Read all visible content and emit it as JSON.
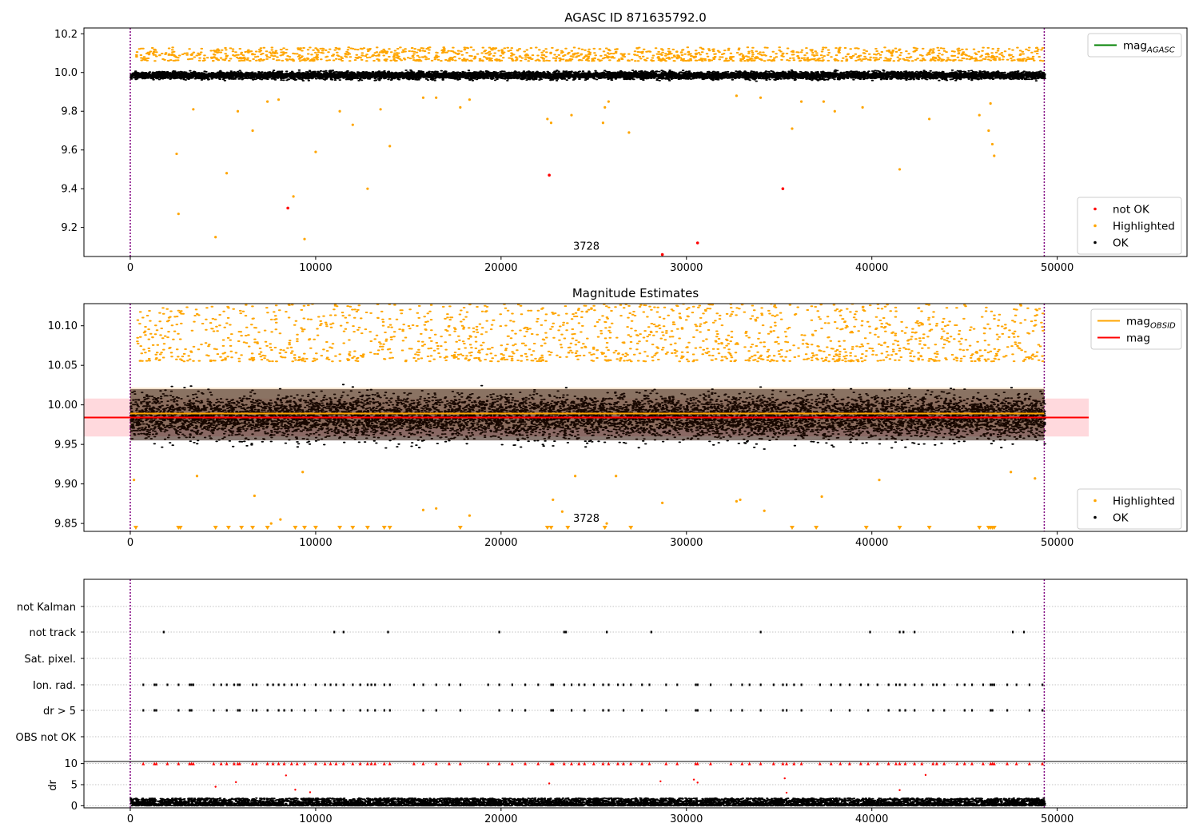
{
  "colors": {
    "ok": "#000000",
    "highlighted": "#ffa500",
    "not_ok": "#ff0000",
    "agasc_line": "#008000",
    "obsid_line": "#ffa500",
    "mag_line": "#ff0000",
    "band_red": "#ffc0c6",
    "band_orange": "#ffe4c4",
    "vline": "#800080",
    "grid": "#b0b0b0"
  },
  "chart_data": [
    {
      "type": "scatter",
      "title": "AGASC ID 871635792.0",
      "xlim": [
        -2500,
        57000
      ],
      "ylim": [
        9.05,
        10.23
      ],
      "x_ticks": [
        0,
        10000,
        20000,
        30000,
        40000,
        50000
      ],
      "x_tick_labels": [
        "0",
        "10000",
        "20000",
        "30000",
        "40000",
        "50000"
      ],
      "y_ticks": [
        9.2,
        9.4,
        9.6,
        9.8,
        10.0,
        10.2
      ],
      "y_tick_labels": [
        "9.2",
        "9.4",
        "9.6",
        "9.8",
        "10.0",
        "10.2"
      ],
      "vlines": [
        0,
        49300
      ],
      "obsid_label": {
        "text": "3728",
        "x": 24600,
        "y": 9.085
      },
      "ok_band": {
        "x_range": [
          0,
          49300
        ],
        "y_center": 9.985,
        "y_spread": 0.035
      },
      "highlighted_upper": {
        "y_range": [
          10.06,
          10.13
        ]
      },
      "highlighted_points": [
        [
          2500,
          9.58
        ],
        [
          2600,
          9.27
        ],
        [
          3400,
          9.81
        ],
        [
          4600,
          9.15
        ],
        [
          5200,
          9.48
        ],
        [
          5800,
          9.8
        ],
        [
          6600,
          9.7
        ],
        [
          7400,
          9.85
        ],
        [
          8000,
          9.86
        ],
        [
          8800,
          9.36
        ],
        [
          9400,
          9.14
        ],
        [
          10000,
          9.59
        ],
        [
          11300,
          9.8
        ],
        [
          12000,
          9.73
        ],
        [
          12800,
          9.4
        ],
        [
          13500,
          9.81
        ],
        [
          14000,
          9.62
        ],
        [
          15800,
          9.87
        ],
        [
          16500,
          9.87
        ],
        [
          17800,
          9.82
        ],
        [
          18300,
          9.86
        ],
        [
          22500,
          9.76
        ],
        [
          22700,
          9.74
        ],
        [
          23800,
          9.78
        ],
        [
          25500,
          9.74
        ],
        [
          25600,
          9.82
        ],
        [
          25800,
          9.85
        ],
        [
          26900,
          9.69
        ],
        [
          32700,
          9.88
        ],
        [
          34000,
          9.87
        ],
        [
          35700,
          9.71
        ],
        [
          36200,
          9.85
        ],
        [
          37400,
          9.85
        ],
        [
          38000,
          9.8
        ],
        [
          39500,
          9.82
        ],
        [
          41500,
          9.5
        ],
        [
          43100,
          9.76
        ],
        [
          45800,
          9.78
        ],
        [
          46300,
          9.7
        ],
        [
          46400,
          9.84
        ],
        [
          46500,
          9.63
        ],
        [
          46600,
          9.57
        ]
      ],
      "not_ok_points": [
        [
          8500,
          9.3
        ],
        [
          22600,
          9.47
        ],
        [
          28700,
          9.06
        ],
        [
          30600,
          9.12
        ],
        [
          35200,
          9.4
        ]
      ],
      "legends": [
        {
          "position": "top-right",
          "entries": [
            {
              "label": "mag",
              "subscript": "AGASC",
              "kind": "line",
              "color": "#008000"
            }
          ]
        },
        {
          "position": "lower-right",
          "entries": [
            {
              "label": "not OK",
              "kind": "dot",
              "color": "#ff0000"
            },
            {
              "label": "Highlighted",
              "kind": "dot",
              "color": "#ffa500"
            },
            {
              "label": "OK",
              "kind": "dot",
              "color": "#000000"
            }
          ]
        }
      ]
    },
    {
      "type": "scatter",
      "title": "Magnitude Estimates",
      "xlim": [
        -2500,
        57000
      ],
      "ylim": [
        9.84,
        10.128
      ],
      "x_ticks": [
        0,
        10000,
        20000,
        30000,
        40000,
        50000
      ],
      "x_tick_labels": [
        "0",
        "10000",
        "20000",
        "30000",
        "40000",
        "50000"
      ],
      "y_ticks": [
        9.85,
        9.9,
        9.95,
        10.0,
        10.05,
        10.1
      ],
      "y_tick_labels": [
        "9.85",
        "9.90",
        "9.95",
        "10.00",
        "10.05",
        "10.10"
      ],
      "vlines": [
        0,
        49300
      ],
      "obsid_label": {
        "text": "3728",
        "x": 24600,
        "y": 9.852
      },
      "mag": 9.984,
      "mag_band": [
        9.96,
        10.008
      ],
      "mag_line_x": [
        -2500,
        51700
      ],
      "mag_obsid": 9.989,
      "mag_obsid_band": [
        9.97,
        10.022
      ],
      "mag_obsid_x": [
        0,
        49300
      ],
      "ok_band": {
        "x_range": [
          0,
          49300
        ],
        "y_center": 9.985,
        "y_spread": 0.05
      },
      "highlighted_upper": {
        "y_range": [
          10.055,
          10.128
        ]
      },
      "highlighted_lower_x": [
        300,
        2600,
        2700,
        4600,
        5300,
        6000,
        6600,
        7400,
        8900,
        9400,
        10000,
        11300,
        12000,
        12800,
        13700,
        14000,
        17800,
        22500,
        22700,
        23600,
        25600,
        27000,
        35700,
        37000,
        39700,
        41500,
        43100,
        45800,
        46300,
        46400,
        46500,
        46600
      ],
      "highlighted_points": [
        [
          200,
          9.905
        ],
        [
          3600,
          9.91
        ],
        [
          6700,
          9.885
        ],
        [
          7600,
          9.85
        ],
        [
          8100,
          9.855
        ],
        [
          9300,
          9.915
        ],
        [
          15800,
          9.867
        ],
        [
          16500,
          9.869
        ],
        [
          18300,
          9.86
        ],
        [
          22800,
          9.88
        ],
        [
          23300,
          9.865
        ],
        [
          24000,
          9.91
        ],
        [
          25700,
          9.85
        ],
        [
          26200,
          9.91
        ],
        [
          28700,
          9.876
        ],
        [
          32700,
          9.878
        ],
        [
          32900,
          9.88
        ],
        [
          34200,
          9.866
        ],
        [
          37300,
          9.884
        ],
        [
          40400,
          9.905
        ],
        [
          47500,
          9.915
        ],
        [
          48800,
          9.907
        ]
      ],
      "legends": [
        {
          "position": "top-right",
          "entries": [
            {
              "label": "mag",
              "subscript": "OBSID",
              "kind": "line",
              "color": "#ffa500"
            },
            {
              "label": "mag",
              "kind": "line",
              "color": "#ff0000"
            }
          ]
        },
        {
          "position": "lower-right",
          "entries": [
            {
              "label": "Highlighted",
              "kind": "dot",
              "color": "#ffa500"
            },
            {
              "label": "OK",
              "kind": "dot",
              "color": "#000000"
            }
          ]
        }
      ]
    },
    {
      "type": "scatter",
      "title": "",
      "xlim": [
        -2500,
        57000
      ],
      "categories": [
        "not Kalman",
        "not track",
        "Sat. pixel.",
        "Ion. rad.",
        "dr > 5",
        "OBS not OK"
      ],
      "vlines": [
        0,
        49300
      ],
      "not_track_x": [
        1800,
        11000,
        11500,
        13900,
        19900,
        23400,
        23500,
        25700,
        28100,
        34000,
        39900,
        41500,
        41700,
        42300,
        47600,
        48200
      ],
      "ion_rad_x": [
        700,
        1300,
        1400,
        2000,
        2600,
        3200,
        3300,
        3400,
        4500,
        4900,
        5200,
        5600,
        5800,
        5900,
        6600,
        6800,
        7400,
        7700,
        8000,
        8300,
        8700,
        9000,
        9400,
        10000,
        10500,
        10800,
        11100,
        11500,
        12000,
        12400,
        12800,
        13000,
        13200,
        13700,
        14000,
        15300,
        15800,
        16500,
        17200,
        17800,
        19300,
        19900,
        20600,
        21300,
        22000,
        22700,
        22800,
        23400,
        23800,
        24200,
        24500,
        25000,
        25500,
        25800,
        26300,
        26600,
        27000,
        27600,
        28000,
        28900,
        29500,
        30500,
        30600,
        31300,
        32400,
        33000,
        33400,
        34000,
        34700,
        35200,
        35400,
        35800,
        36200,
        37200,
        37800,
        38300,
        38800,
        39400,
        39800,
        40300,
        40900,
        41300,
        41500,
        41800,
        42300,
        42700,
        43300,
        43500,
        43900,
        44600,
        45000,
        45400,
        46000,
        46400,
        46500,
        46600,
        47300,
        47800,
        48500,
        49200
      ],
      "dr_gt5_x": [
        700,
        1300,
        1400,
        2600,
        3200,
        3300,
        4500,
        5200,
        5800,
        5900,
        6600,
        6800,
        7400,
        8000,
        8300,
        8700,
        9400,
        10000,
        10800,
        11500,
        12400,
        12800,
        13200,
        13700,
        14000,
        15800,
        16500,
        17800,
        19900,
        20600,
        21300,
        22700,
        22800,
        23800,
        24500,
        25500,
        25800,
        26600,
        27600,
        28900,
        30500,
        30600,
        31300,
        32400,
        33000,
        34000,
        35200,
        35400,
        36200,
        37800,
        38800,
        39800,
        40900,
        41500,
        41800,
        42300,
        43300,
        43900,
        45000,
        45400,
        46400,
        46500,
        47300,
        48500,
        49200
      ],
      "dr_panel": {
        "ylabel": "dr",
        "ylim": [
          -0.5,
          10.5
        ],
        "y_ticks": [
          0,
          5,
          10
        ],
        "y_tick_labels": [
          "0",
          "5",
          "10"
        ],
        "ok_range": [
          0,
          1.8
        ],
        "clipped_y": 10,
        "clipped_x": [
          700,
          1300,
          1400,
          2000,
          2600,
          3200,
          3300,
          3400,
          4500,
          4900,
          5200,
          5600,
          5800,
          5900,
          6600,
          6800,
          7400,
          7700,
          8000,
          8300,
          8700,
          9000,
          9400,
          10000,
          10500,
          10800,
          11100,
          11500,
          12000,
          12400,
          12800,
          13000,
          13200,
          13700,
          14000,
          15300,
          15800,
          16500,
          17200,
          17800,
          19300,
          19900,
          20600,
          21300,
          22000,
          22700,
          22800,
          23400,
          23800,
          24200,
          24500,
          25000,
          25500,
          25800,
          26300,
          26600,
          27000,
          27600,
          28000,
          28900,
          29500,
          30500,
          30600,
          31300,
          32400,
          33000,
          33400,
          34000,
          34700,
          35200,
          35400,
          35800,
          36200,
          37200,
          37800,
          38300,
          38800,
          39400,
          39800,
          40300,
          40900,
          41300,
          41500,
          41800,
          42300,
          42700,
          43300,
          43500,
          43900,
          44600,
          45000,
          45400,
          46000,
          46400,
          46500,
          46600,
          47300,
          47800,
          48500,
          49200
        ],
        "red_points": [
          [
            4600,
            4.5
          ],
          [
            5700,
            5.6
          ],
          [
            8400,
            7.2
          ],
          [
            8900,
            3.8
          ],
          [
            9700,
            3.2
          ],
          [
            22600,
            5.3
          ],
          [
            28600,
            5.8
          ],
          [
            30400,
            6.2
          ],
          [
            30600,
            5.5
          ],
          [
            35300,
            6.5
          ],
          [
            35400,
            3.1
          ],
          [
            41500,
            3.7
          ],
          [
            42900,
            7.3
          ]
        ]
      },
      "x_ticks": [
        0,
        10000,
        20000,
        30000,
        40000,
        50000
      ],
      "x_tick_labels": [
        "0",
        "10000",
        "20000",
        "30000",
        "40000",
        "50000"
      ]
    }
  ]
}
